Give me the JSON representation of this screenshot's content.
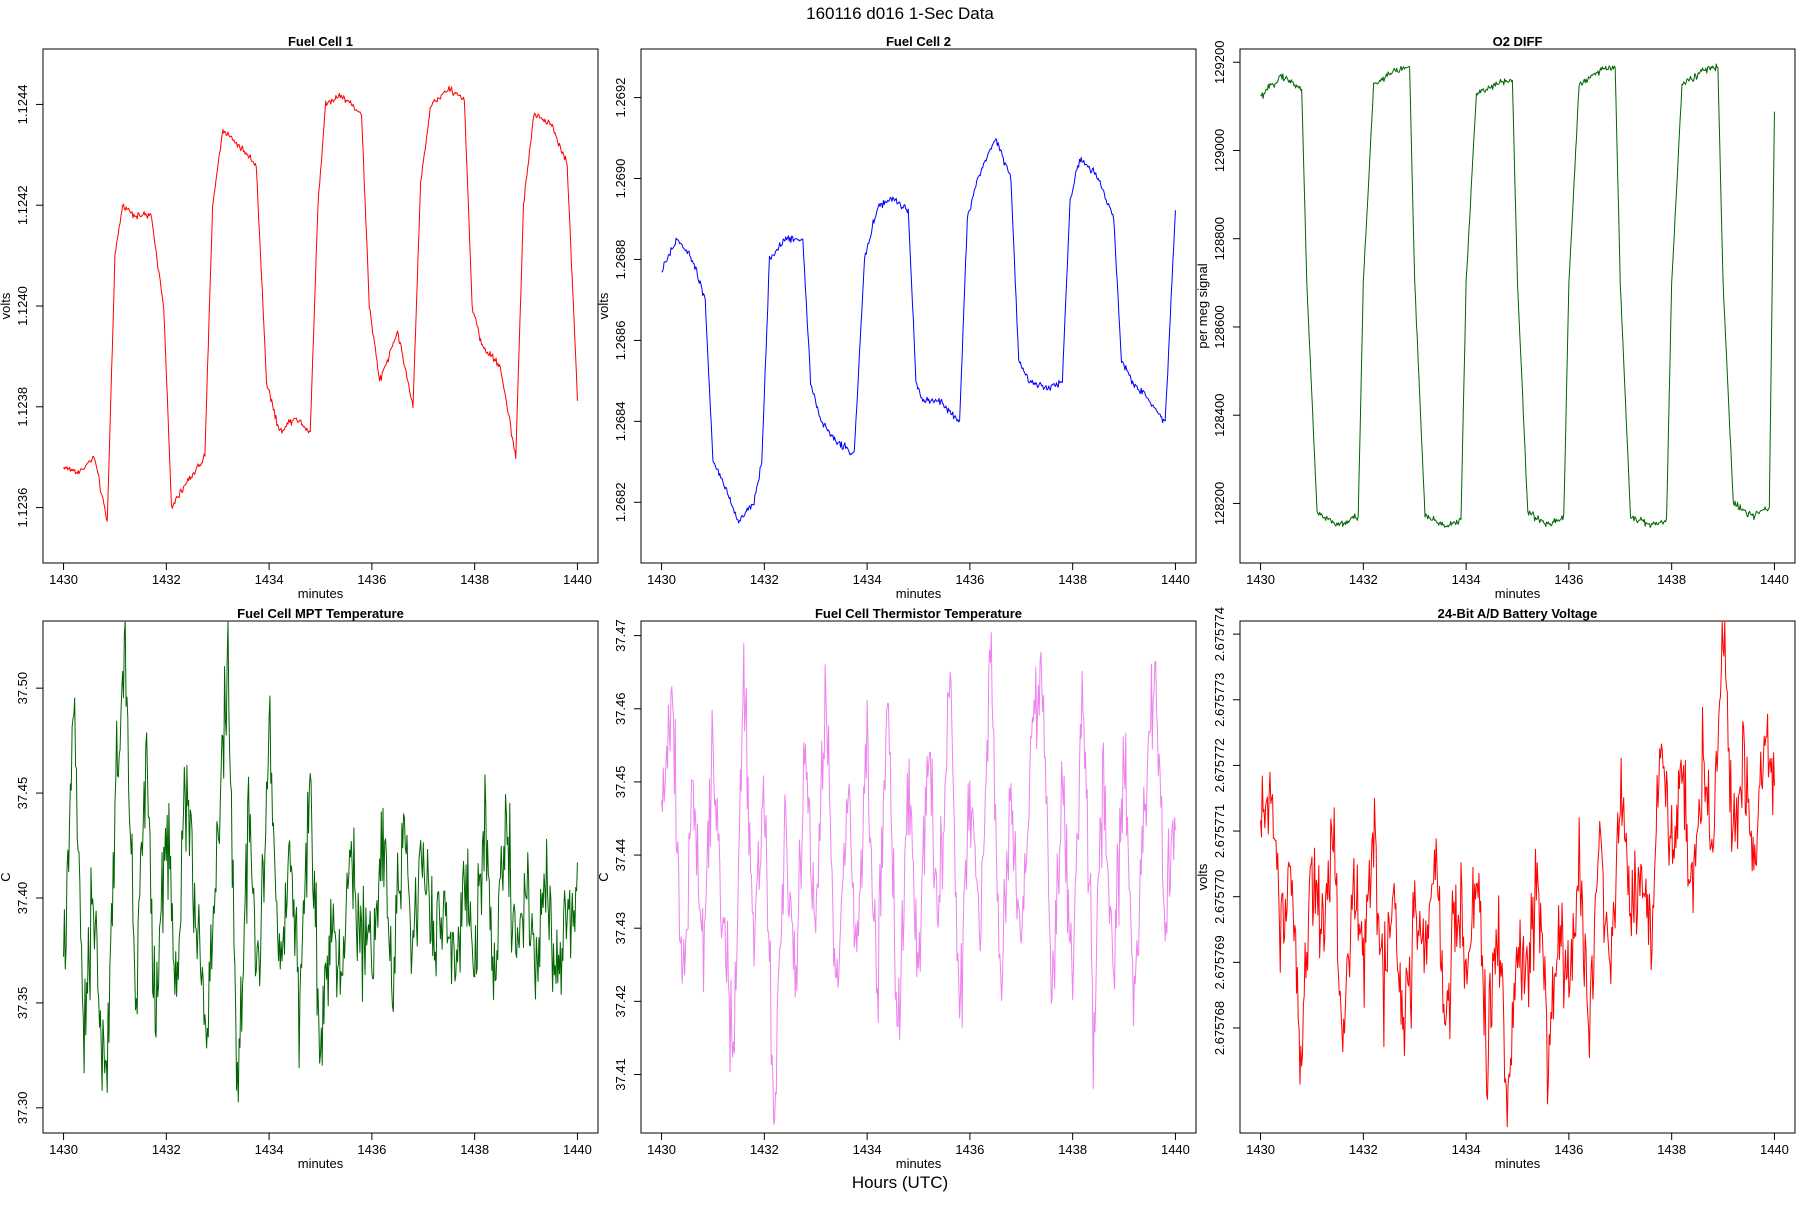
{
  "page": {
    "title": "160116   d016   1-Sec Data",
    "xlabel": "Hours (UTC)"
  },
  "chart_data": [
    {
      "type": "line",
      "title": "Fuel Cell 1",
      "xlabel": "minutes",
      "ylabel": "volts",
      "color": "#ff0000",
      "xlim": [
        1429.6,
        1440.4
      ],
      "ylim": [
        1.12349,
        1.12451
      ],
      "xticks": [
        1430,
        1432,
        1434,
        1436,
        1438,
        1440
      ],
      "xtick_labels": [
        "1430",
        "1432",
        "1434",
        "1436",
        "1438",
        "1440"
      ],
      "yticks": [
        1.1236,
        1.1238,
        1.124,
        1.1242,
        1.1244
      ],
      "ytick_labels": [
        "1.1236",
        "1.1238",
        "1.1240",
        "1.1242",
        "1.1244"
      ],
      "series": [
        {
          "name": "Fuel Cell 1",
          "x": [
            1430,
            1430.3,
            1430.6,
            1430.85,
            1431.0,
            1431.15,
            1431.4,
            1431.7,
            1431.95,
            1432.1,
            1432.4,
            1432.75,
            1432.9,
            1433.1,
            1433.4,
            1433.75,
            1433.95,
            1434.2,
            1434.5,
            1434.8,
            1434.95,
            1435.1,
            1435.4,
            1435.8,
            1435.95,
            1436.15,
            1436.5,
            1436.8,
            1436.95,
            1437.15,
            1437.5,
            1437.8,
            1437.95,
            1438.15,
            1438.5,
            1438.8,
            1438.95,
            1439.15,
            1439.5,
            1439.8,
            1440
          ],
          "y": [
            1.12368,
            1.12367,
            1.1237,
            1.12357,
            1.1241,
            1.1242,
            1.12418,
            1.12418,
            1.124,
            1.1236,
            1.12365,
            1.1237,
            1.1242,
            1.12435,
            1.12432,
            1.12428,
            1.12385,
            1.12375,
            1.12378,
            1.12375,
            1.1242,
            1.1244,
            1.12442,
            1.12438,
            1.124,
            1.12385,
            1.12395,
            1.1238,
            1.12425,
            1.1244,
            1.12443,
            1.12441,
            1.124,
            1.12392,
            1.12388,
            1.1237,
            1.1242,
            1.12438,
            1.12436,
            1.12428,
            1.12382
          ]
        }
      ]
    },
    {
      "type": "line",
      "title": "Fuel Cell 2",
      "xlabel": "minutes",
      "ylabel": "volts",
      "color": "#0000ff",
      "xlim": [
        1429.6,
        1440.4
      ],
      "ylim": [
        1.26805,
        1.26932
      ],
      "xticks": [
        1430,
        1432,
        1434,
        1436,
        1438,
        1440
      ],
      "xtick_labels": [
        "1430",
        "1432",
        "1434",
        "1436",
        "1438",
        "1440"
      ],
      "yticks": [
        1.2682,
        1.2684,
        1.2686,
        1.2688,
        1.269,
        1.2692
      ],
      "ytick_labels": [
        "1.2682",
        "1.2684",
        "1.2686",
        "1.2688",
        "1.2690",
        "1.2692"
      ],
      "series": [
        {
          "name": "Fuel Cell 2",
          "x": [
            1430,
            1430.3,
            1430.6,
            1430.85,
            1431.0,
            1431.2,
            1431.5,
            1431.8,
            1431.95,
            1432.1,
            1432.4,
            1432.75,
            1432.9,
            1433.1,
            1433.4,
            1433.75,
            1433.95,
            1434.2,
            1434.5,
            1434.8,
            1434.95,
            1435.1,
            1435.4,
            1435.8,
            1435.95,
            1436.15,
            1436.5,
            1436.8,
            1436.95,
            1437.15,
            1437.5,
            1437.8,
            1437.95,
            1438.15,
            1438.5,
            1438.8,
            1438.95,
            1439.15,
            1439.5,
            1439.8,
            1440
          ],
          "y": [
            1.26877,
            1.26885,
            1.2688,
            1.2687,
            1.2683,
            1.26825,
            1.26815,
            1.2682,
            1.2683,
            1.2688,
            1.26885,
            1.26885,
            1.2685,
            1.2684,
            1.26835,
            1.26832,
            1.2688,
            1.26893,
            1.26895,
            1.26892,
            1.2685,
            1.26845,
            1.26845,
            1.2684,
            1.2689,
            1.269,
            1.2691,
            1.269,
            1.26855,
            1.2685,
            1.26848,
            1.2685,
            1.26895,
            1.26905,
            1.269,
            1.2689,
            1.26855,
            1.2685,
            1.26845,
            1.2684,
            1.26892
          ]
        }
      ]
    },
    {
      "type": "line",
      "title": "O2 DIFF",
      "xlabel": "minutes",
      "ylabel": "per meg signal",
      "color": "#006400",
      "xlim": [
        1429.6,
        1440.4
      ],
      "ylim": [
        128065,
        129230
      ],
      "xticks": [
        1430,
        1432,
        1434,
        1436,
        1438,
        1440
      ],
      "xtick_labels": [
        "1430",
        "1432",
        "1434",
        "1436",
        "1438",
        "1440"
      ],
      "yticks": [
        128200,
        128400,
        128600,
        128800,
        129000,
        129200
      ],
      "ytick_labels": [
        "128200",
        "128400",
        "128600",
        "128800",
        "129000",
        "129200"
      ],
      "series": [
        {
          "name": "O2 DIFF",
          "x": [
            1430,
            1430.4,
            1430.8,
            1430.9,
            1431.1,
            1431.5,
            1431.9,
            1432.0,
            1432.2,
            1432.6,
            1432.9,
            1433.0,
            1433.2,
            1433.6,
            1433.9,
            1434.0,
            1434.2,
            1434.6,
            1434.9,
            1435.0,
            1435.2,
            1435.6,
            1435.9,
            1436.0,
            1436.2,
            1436.6,
            1436.9,
            1437.0,
            1437.2,
            1437.6,
            1437.9,
            1438.0,
            1438.2,
            1438.6,
            1438.9,
            1439.0,
            1439.2,
            1439.6,
            1439.9,
            1440
          ],
          "y": [
            129120,
            129170,
            129140,
            128700,
            128180,
            128150,
            128170,
            128700,
            129150,
            129180,
            129190,
            128700,
            128170,
            128150,
            128160,
            128700,
            129130,
            129150,
            129160,
            128700,
            128180,
            128150,
            128170,
            128700,
            129150,
            129180,
            129190,
            128700,
            128170,
            128150,
            128160,
            128700,
            129150,
            129180,
            129190,
            128700,
            128200,
            128170,
            128190,
            129090
          ]
        }
      ]
    },
    {
      "type": "line",
      "title": "Fuel Cell MPT Temperature",
      "xlabel": "minutes",
      "ylabel": "C",
      "color": "#006400",
      "xlim": [
        1429.6,
        1440.4
      ],
      "ylim": [
        37.288,
        37.532
      ],
      "xticks": [
        1430,
        1432,
        1434,
        1436,
        1438,
        1440
      ],
      "xtick_labels": [
        "1430",
        "1432",
        "1434",
        "1436",
        "1438",
        "1440"
      ],
      "yticks": [
        37.3,
        37.35,
        37.4,
        37.45,
        37.5
      ],
      "ytick_labels": [
        "37.30",
        "37.35",
        "37.40",
        "37.45",
        "37.50"
      ],
      "series": [
        {
          "name": "MPT Temperature",
          "x": [
            1430,
            1430.2,
            1430.4,
            1430.6,
            1430.8,
            1431.0,
            1431.2,
            1431.4,
            1431.6,
            1431.8,
            1432.0,
            1432.2,
            1432.4,
            1432.6,
            1432.8,
            1433.0,
            1433.2,
            1433.4,
            1433.6,
            1433.8,
            1434.0,
            1434.2,
            1434.4,
            1434.6,
            1434.8,
            1435.0,
            1435.2,
            1435.4,
            1435.6,
            1435.8,
            1436.0,
            1436.2,
            1436.4,
            1436.6,
            1436.8,
            1437.0,
            1437.2,
            1437.4,
            1437.6,
            1437.8,
            1438.0,
            1438.2,
            1438.4,
            1438.6,
            1438.8,
            1439.0,
            1439.2,
            1439.4,
            1439.6,
            1439.8,
            1440
          ],
          "y": [
            37.36,
            37.49,
            37.33,
            37.4,
            37.3,
            37.44,
            37.52,
            37.35,
            37.47,
            37.34,
            37.44,
            37.36,
            37.46,
            37.38,
            37.33,
            37.43,
            37.51,
            37.3,
            37.44,
            37.35,
            37.48,
            37.37,
            37.42,
            37.35,
            37.45,
            37.32,
            37.4,
            37.36,
            37.42,
            37.38,
            37.37,
            37.43,
            37.36,
            37.44,
            37.37,
            37.42,
            37.38,
            37.4,
            37.36,
            37.41,
            37.37,
            37.43,
            37.36,
            37.44,
            37.38,
            37.4,
            37.37,
            37.41,
            37.36,
            37.4,
            37.39
          ]
        }
      ]
    },
    {
      "type": "line",
      "title": "Fuel Cell Thermistor Temperature",
      "xlabel": "minutes",
      "ylabel": "C",
      "color": "#ee82ee",
      "xlim": [
        1429.6,
        1440.4
      ],
      "ylim": [
        37.402,
        37.472
      ],
      "xticks": [
        1430,
        1432,
        1434,
        1436,
        1438,
        1440
      ],
      "xtick_labels": [
        "1430",
        "1432",
        "1434",
        "1436",
        "1438",
        "1440"
      ],
      "yticks": [
        37.41,
        37.42,
        37.43,
        37.44,
        37.45,
        37.46,
        37.47
      ],
      "ytick_labels": [
        "37.41",
        "37.42",
        "37.43",
        "37.44",
        "37.45",
        "37.46",
        "37.47"
      ],
      "series": [
        {
          "name": "Thermistor Temperature",
          "x": [
            1430,
            1430.2,
            1430.4,
            1430.6,
            1430.8,
            1431.0,
            1431.2,
            1431.4,
            1431.6,
            1431.8,
            1432.0,
            1432.2,
            1432.4,
            1432.6,
            1432.8,
            1433.0,
            1433.2,
            1433.4,
            1433.6,
            1433.8,
            1434.0,
            1434.2,
            1434.4,
            1434.6,
            1434.8,
            1435.0,
            1435.2,
            1435.4,
            1435.6,
            1435.8,
            1436.0,
            1436.2,
            1436.4,
            1436.6,
            1436.8,
            1437.0,
            1437.2,
            1437.4,
            1437.6,
            1437.8,
            1438.0,
            1438.2,
            1438.4,
            1438.6,
            1438.8,
            1439.0,
            1439.2,
            1439.4,
            1439.6,
            1439.8,
            1440
          ],
          "y": [
            37.445,
            37.462,
            37.42,
            37.45,
            37.428,
            37.455,
            37.43,
            37.413,
            37.467,
            37.428,
            37.45,
            37.404,
            37.445,
            37.425,
            37.455,
            37.43,
            37.462,
            37.418,
            37.448,
            37.428,
            37.456,
            37.42,
            37.462,
            37.414,
            37.45,
            37.425,
            37.455,
            37.432,
            37.465,
            37.418,
            37.448,
            37.43,
            37.466,
            37.42,
            37.45,
            37.425,
            37.455,
            37.469,
            37.418,
            37.45,
            37.425,
            37.462,
            37.416,
            37.45,
            37.425,
            37.455,
            37.418,
            37.448,
            37.465,
            37.43,
            37.445
          ]
        }
      ]
    },
    {
      "type": "line",
      "title": "24-Bit A/D Battery Voltage",
      "xlabel": "minutes",
      "ylabel": "volts",
      "color": "#ff0000",
      "xlim": [
        1429.6,
        1440.4
      ],
      "ylim": [
        2.6757664,
        2.6757742
      ],
      "xticks": [
        1430,
        1432,
        1434,
        1436,
        1438,
        1440
      ],
      "xtick_labels": [
        "1430",
        "1432",
        "1434",
        "1436",
        "1438",
        "1440"
      ],
      "yticks": [
        2.675768,
        2.675769,
        2.67577,
        2.675771,
        2.675772,
        2.675773,
        2.675774
      ],
      "ytick_labels": [
        "2.675768",
        "2.675769",
        "2.675770",
        "2.675771",
        "2.675772",
        "2.675773",
        "2.675774"
      ],
      "series": [
        {
          "name": "Battery Voltage",
          "x": [
            1430,
            1430.2,
            1430.4,
            1430.6,
            1430.8,
            1431.0,
            1431.2,
            1431.4,
            1431.6,
            1431.8,
            1432.0,
            1432.2,
            1432.4,
            1432.6,
            1432.8,
            1433.0,
            1433.2,
            1433.4,
            1433.6,
            1433.8,
            1434.0,
            1434.2,
            1434.4,
            1434.6,
            1434.8,
            1435.0,
            1435.2,
            1435.4,
            1435.6,
            1435.8,
            1436.0,
            1436.2,
            1436.4,
            1436.6,
            1436.8,
            1437.0,
            1437.2,
            1437.4,
            1437.6,
            1437.8,
            1438.0,
            1438.2,
            1438.4,
            1438.6,
            1438.8,
            1439.0,
            1439.2,
            1439.4,
            1439.6,
            1439.8,
            1440
          ],
          "y": [
            2.675771,
            2.6757718,
            2.6757696,
            2.6757706,
            2.6757676,
            2.6757705,
            2.6757695,
            2.675771,
            2.675768,
            2.67577,
            2.6757692,
            2.675771,
            2.6757685,
            2.6757702,
            2.6757678,
            2.6757698,
            2.675769,
            2.6757706,
            2.675768,
            2.6757698,
            2.6757688,
            2.6757702,
            2.6757675,
            2.6757695,
            2.675767,
            2.6757692,
            2.6757688,
            2.6757705,
            2.6757675,
            2.6757695,
            2.6757685,
            2.6757705,
            2.6757678,
            2.6757712,
            2.6757688,
            2.6757715,
            2.6757698,
            2.6757705,
            2.6757695,
            2.6757722,
            2.6757708,
            2.6757718,
            2.6757702,
            2.675772,
            2.6757708,
            2.6757739,
            2.675771,
            2.6757722,
            2.6757702,
            2.6757725,
            2.6757715
          ]
        }
      ]
    }
  ]
}
